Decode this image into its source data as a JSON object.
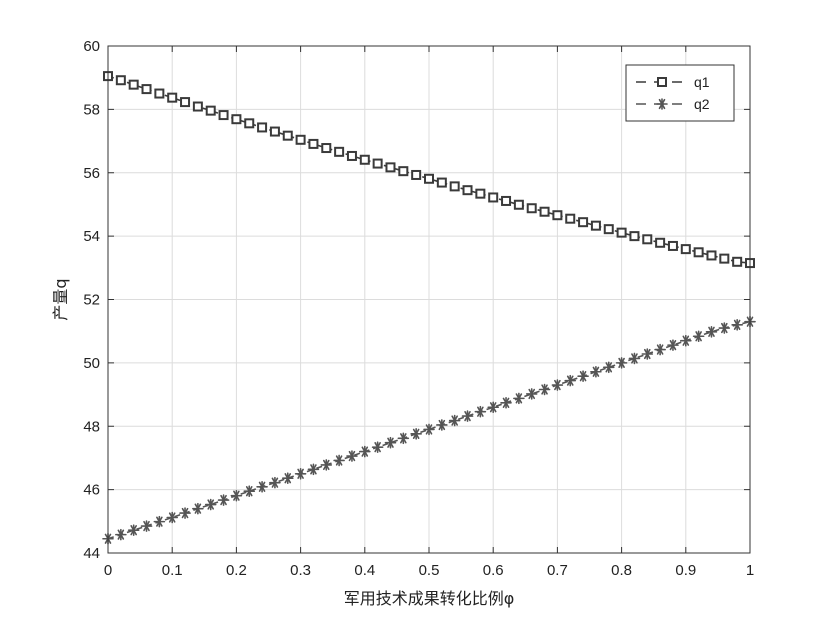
{
  "chart_data": {
    "type": "line",
    "title": "",
    "xlabel": "军用技术成果转化比例φ",
    "ylabel": "产量q",
    "xlim": [
      0,
      1
    ],
    "ylim": [
      44,
      60
    ],
    "xticks": [
      0,
      0.1,
      0.2,
      0.3,
      0.4,
      0.5,
      0.6,
      0.7,
      0.8,
      0.9,
      1
    ],
    "xtick_labels": [
      "0",
      "0.1",
      "0.2",
      "0.3",
      "0.4",
      "0.5",
      "0.6",
      "0.7",
      "0.8",
      "0.9",
      "1"
    ],
    "yticks": [
      44,
      46,
      48,
      50,
      52,
      54,
      56,
      58,
      60
    ],
    "ytick_labels": [
      "44",
      "46",
      "48",
      "50",
      "52",
      "54",
      "56",
      "58",
      "60"
    ],
    "grid": true,
    "legend_position": "top-right",
    "series": [
      {
        "name": "q1",
        "marker": "square",
        "line_style": "dashed",
        "color": "#3a3a3a",
        "x": [
          0,
          0.02,
          0.04,
          0.06,
          0.08,
          0.1,
          0.12,
          0.14,
          0.16,
          0.18,
          0.2,
          0.22,
          0.24,
          0.26,
          0.28,
          0.3,
          0.32,
          0.34,
          0.36,
          0.38,
          0.4,
          0.42,
          0.44,
          0.46,
          0.48,
          0.5,
          0.52,
          0.54,
          0.56,
          0.58,
          0.6,
          0.62,
          0.64,
          0.66,
          0.68,
          0.7,
          0.72,
          0.74,
          0.76,
          0.78,
          0.8,
          0.82,
          0.84,
          0.86,
          0.88,
          0.9,
          0.92,
          0.94,
          0.96,
          0.98,
          1
        ],
        "y": [
          59.05,
          58.92,
          58.78,
          58.64,
          58.5,
          58.37,
          58.23,
          58.09,
          57.96,
          57.82,
          57.69,
          57.56,
          57.43,
          57.3,
          57.17,
          57.04,
          56.91,
          56.78,
          56.66,
          56.53,
          56.41,
          56.29,
          56.17,
          56.05,
          55.93,
          55.81,
          55.69,
          55.57,
          55.45,
          55.34,
          55.22,
          55.11,
          54.99,
          54.88,
          54.77,
          54.66,
          54.55,
          54.44,
          54.33,
          54.22,
          54.11,
          54.0,
          53.9,
          53.79,
          53.69,
          53.59,
          53.49,
          53.39,
          53.29,
          53.19,
          53.15
        ]
      },
      {
        "name": "q2",
        "marker": "asterisk",
        "line_style": "dashed",
        "color": "#555555",
        "x": [
          0,
          0.02,
          0.04,
          0.06,
          0.08,
          0.1,
          0.12,
          0.14,
          0.16,
          0.18,
          0.2,
          0.22,
          0.24,
          0.26,
          0.28,
          0.3,
          0.32,
          0.34,
          0.36,
          0.38,
          0.4,
          0.42,
          0.44,
          0.46,
          0.48,
          0.5,
          0.52,
          0.54,
          0.56,
          0.58,
          0.6,
          0.62,
          0.64,
          0.66,
          0.68,
          0.7,
          0.72,
          0.74,
          0.76,
          0.78,
          0.8,
          0.82,
          0.84,
          0.86,
          0.88,
          0.9,
          0.92,
          0.94,
          0.96,
          0.98,
          1
        ],
        "y": [
          44.45,
          44.58,
          44.72,
          44.85,
          44.99,
          45.12,
          45.26,
          45.4,
          45.53,
          45.67,
          45.81,
          45.95,
          46.09,
          46.22,
          46.36,
          46.5,
          46.64,
          46.78,
          46.92,
          47.06,
          47.2,
          47.34,
          47.48,
          47.62,
          47.76,
          47.9,
          48.04,
          48.18,
          48.32,
          48.46,
          48.6,
          48.74,
          48.88,
          49.02,
          49.16,
          49.3,
          49.44,
          49.58,
          49.72,
          49.86,
          50.0,
          50.14,
          50.28,
          50.42,
          50.56,
          50.7,
          50.84,
          50.98,
          51.1,
          51.2,
          51.3
        ]
      }
    ]
  }
}
